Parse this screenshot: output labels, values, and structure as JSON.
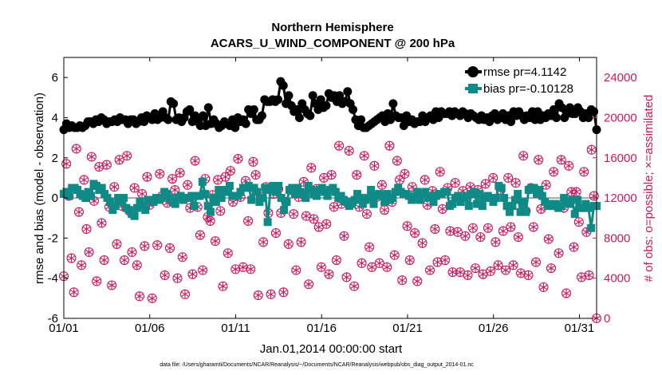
{
  "chart_data": {
    "type": "line",
    "title": "Northern Hemisphere",
    "subtitle": "ACARS_U_WIND_COMPONENT @ 200 hPa",
    "xlabel": "Jan.01,2014 00:00:00 start",
    "ylabel": "rmse and bias (model - observation)",
    "y2label": "# of obs: o=possible; ×=assimilated",
    "footnote": "data file: /Users/gharamti/Documents/NCAR/Reanalysis/~/Documents/NCAR/Reanalysis/webpub/obs_diag_output_2014-01.nc",
    "xlim": [
      1,
      32
    ],
    "ylim": [
      -6,
      7
    ],
    "y2lim": [
      0,
      26000
    ],
    "xticks": [
      1,
      6,
      11,
      16,
      21,
      26,
      31
    ],
    "xtick_labels": [
      "01/01",
      "01/06",
      "01/11",
      "01/16",
      "01/21",
      "01/26",
      "01/31"
    ],
    "yticks": [
      -6,
      -4,
      -2,
      0,
      2,
      4,
      6
    ],
    "ytick_labels": [
      "-6",
      "-4",
      "-2",
      "0",
      "2",
      "4",
      "6"
    ],
    "y2ticks": [
      0,
      4000,
      8000,
      12000,
      16000,
      20000,
      24000
    ],
    "y2tick_labels": [
      "0",
      "4000",
      "8000",
      "12000",
      "16000",
      "20000",
      "24000"
    ],
    "grid": false,
    "legend_position": "top-right",
    "colors": {
      "rmse": "#000000",
      "bias": "#0f8a87",
      "obs": "#c8195e",
      "zero_line": "#a6a6a6"
    },
    "series": [
      {
        "name": "rmse pr=4.1142",
        "role": "rmse",
        "values": [
          3.4,
          3.7,
          3.5,
          3.6,
          3.5,
          3.5,
          3.6,
          3.5,
          3.6,
          3.8,
          3.8,
          3.7,
          3.9,
          3.8,
          4.0,
          3.9,
          3.7,
          3.8,
          3.8,
          3.9,
          3.8,
          4.0,
          3.9,
          3.9,
          3.7,
          3.9,
          3.9,
          3.7,
          3.8,
          4.0,
          3.8,
          4.1,
          4.0,
          3.9,
          4.2,
          3.9,
          4.0,
          4.3,
          4.0,
          3.9,
          4.8,
          4.7,
          3.9,
          4.0,
          3.8,
          4.0,
          4.3,
          4.4,
          3.8,
          4.1,
          3.8,
          3.6,
          4.1,
          3.6,
          4.5,
          3.7,
          3.9,
          3.7,
          3.5,
          3.6,
          3.8,
          3.7,
          3.6,
          3.9,
          3.5,
          4.0,
          3.8,
          3.9,
          3.7,
          4.4,
          4.2,
          4.4,
          3.9,
          3.9,
          4.1,
          4.9,
          4.8,
          4.8,
          4.9,
          4.8,
          4.9,
          5.8,
          5.6,
          4.7,
          5.1,
          4.6,
          4.3,
          4.4,
          4.0,
          4.7,
          4.4,
          4.2,
          4.1,
          5.1,
          4.7,
          4.4,
          4.9,
          4.5,
          4.6,
          5.2,
          5.0,
          5.1,
          4.8,
          5.1,
          4.7,
          4.8,
          5.3,
          4.7,
          4.4,
          3.9,
          3.6,
          3.9,
          3.5,
          3.5,
          3.6,
          3.7,
          3.8,
          3.9,
          4.0,
          4.1,
          3.8,
          4.2,
          3.9,
          4.7,
          4.1,
          4.0,
          4.0,
          3.6,
          4.1,
          3.8,
          3.9,
          3.7,
          3.8,
          3.8,
          4.1,
          3.8,
          4.0,
          4.1,
          3.9,
          4.3,
          4.0,
          4.3,
          4.2,
          4.2,
          4.3,
          4.1,
          4.3,
          4.2,
          4.1,
          4.3,
          4.2,
          4.0,
          4.2,
          4.1,
          4.0,
          3.9,
          4.1,
          3.9,
          4.0,
          3.8,
          4.1,
          4.2,
          3.9,
          4.0,
          4.2,
          3.9,
          4.1,
          3.8,
          4.3,
          4.1,
          4.3,
          4.1,
          3.9,
          4.1,
          4.0,
          4.3,
          3.9,
          4.3,
          3.9,
          4.1,
          4.0,
          4.2,
          4.1,
          4.4,
          4.0,
          4.7,
          4.5,
          4.0,
          4.2,
          4.5,
          4.2,
          4.2,
          4.5,
          4.3,
          4.0,
          4.2,
          4.0,
          4.4,
          4.3,
          3.4
        ]
      },
      {
        "name": "bias pr=-0.10128",
        "role": "bias",
        "values": [
          0.2,
          0.3,
          0.1,
          0.5,
          0.5,
          0.4,
          0.2,
          0.1,
          0.0,
          0.3,
          0.1,
          0.7,
          0.6,
          0.4,
          0.5,
          0.2,
          0.0,
          -0.2,
          -0.6,
          -0.4,
          0.0,
          -0.2,
          0.0,
          -0.5,
          -0.6,
          -0.8,
          -0.9,
          -0.5,
          -0.2,
          -0.4,
          -0.6,
          -0.1,
          -0.1,
          -0.2,
          0.0,
          -0.1,
          0.0,
          0.3,
          0.2,
          0.0,
          -0.2,
          -0.3,
          0.0,
          0.1,
          -0.1,
          0.0,
          0.0,
          0.1,
          -0.4,
          0.1,
          0.1,
          0.8,
          0.2,
          -0.4,
          -0.7,
          0.0,
          -0.2,
          0.4,
          0.0,
          0.4,
          0.3,
          0.6,
          0.1,
          0.1,
          0.1,
          0.3,
          0.5,
          0.5,
          0.6,
          -0.1,
          0.5,
          0.3,
          -0.2,
          0.0,
          0.5,
          -1.2,
          0.4,
          0.6,
          0.3,
          0.6,
          0.0,
          -0.6,
          -0.2,
          0.4,
          0.5,
          0.2,
          0.5,
          0.3,
          0.2,
          0.0,
          0.6,
          0.4,
          0.2,
          0.1,
          0.4,
          0.5,
          0.3,
          0.1,
          0.4,
          0.5,
          0.3,
          0.0,
          0.1,
          -0.1,
          -0.2,
          -0.4,
          -0.3,
          -0.1,
          0.2,
          0.0,
          -0.3,
          -0.1,
          0.0,
          0.4,
          -0.3,
          0.1,
          0.2,
          0.1,
          -0.2,
          0.2,
          -0.1,
          0.0,
          0.3,
          0.5,
          0.3,
          0.2,
          0.2,
          0.1,
          -0.1,
          0.0,
          0.3,
          -0.1,
          0.2,
          0.3,
          0.0,
          0.1,
          -0.2,
          0.1,
          0.2,
          0.2,
          0.3,
          0.3,
          -0.4,
          -0.3,
          0.0,
          0.1,
          -0.2,
          0.0,
          0.1,
          -0.4,
          0.2,
          0.3,
          -0.3,
          0.2,
          -0.4,
          0.0,
          0.1,
          0.0,
          -0.2,
          0.0,
          0.6,
          0.5,
          0.0,
          -0.4,
          -0.7,
          -0.4,
          -0.1,
          0.2,
          -0.7,
          -0.2,
          -0.7,
          0.4,
          0.5,
          0.5,
          0.2,
          0.4,
          0.1,
          -0.2,
          -0.4,
          -0.3,
          -0.4,
          -0.3,
          -0.5,
          -0.4,
          0.0,
          -0.2,
          -0.3,
          -0.1,
          -0.8,
          -0.1,
          -0.5,
          -0.5,
          -0.3,
          -0.5,
          -1.5,
          -0.4,
          -0.4
        ]
      },
      {
        "name": "obs possible",
        "role": "obs",
        "values": [
          4200,
          15400,
          12200,
          6000,
          2600,
          16900,
          10600,
          5300,
          13800,
          8900,
          6600,
          16100,
          11700,
          3700,
          15100,
          9500,
          5800,
          15300,
          11100,
          3300,
          13100,
          7400,
          15800,
          11200,
          5800,
          16200,
          10700,
          6600,
          13000,
          5300,
          2200,
          12400,
          7200,
          14100,
          11300,
          2000,
          11800,
          7300,
          14400,
          12200,
          4300,
          11500,
          7000,
          13900,
          12800,
          4000,
          14500,
          6100,
          2400,
          13300,
          11000,
          4400,
          15700,
          11100,
          8300,
          4800,
          13900,
          10100,
          9700,
          12300,
          7700,
          13800,
          10700,
          3200,
          14100,
          6500,
          14700,
          11600,
          4900,
          15900,
          12100,
          5100,
          13700,
          9700,
          4900,
          15600,
          14300,
          2300,
          12100,
          7600,
          13100,
          10500,
          2400,
          12400,
          8500,
          12900,
          10500,
          2600,
          11600,
          7400,
          12800,
          10400,
          4800,
          12100,
          7600,
          13600,
          10200,
          3400,
          15000,
          9900,
          12900,
          9100,
          5100,
          14000,
          9400,
          4400,
          14300,
          11100,
          5800,
          17200,
          11400,
          8200,
          4100,
          16700,
          11500,
          3200,
          14300,
          11100,
          5500,
          16200,
          10400,
          7100,
          5100,
          15200,
          12100,
          5500,
          13300,
          10800,
          5100,
          17200,
          11600,
          6300,
          15700,
          13800,
          3800,
          14400,
          9200,
          5800,
          13100,
          8500,
          3700,
          12300,
          7500,
          13800,
          11300,
          4800,
          12700,
          8900,
          5600,
          14600,
          10900,
          5800,
          13000,
          8700,
          4600,
          13500,
          8600,
          4600,
          12700,
          8200,
          4300,
          13100,
          9000,
          5000,
          12800,
          8100,
          4400,
          13400,
          9000,
          4700,
          14000,
          7600,
          5300,
          12800,
          8700,
          4800,
          14000,
          9100,
          5300,
          13500,
          8100,
          4500,
          16200,
          10700,
          4300,
          13000,
          9100,
          5600,
          15800,
          10900,
          3100,
          13300,
          7900,
          5000,
          14600,
          11200,
          6500,
          15800,
          11000,
          2500,
          15200,
          12600,
          7100,
          12600,
          9600,
          4100,
          14600,
          8600,
          4300,
          16800,
          12200,
          0
        ]
      }
    ]
  }
}
